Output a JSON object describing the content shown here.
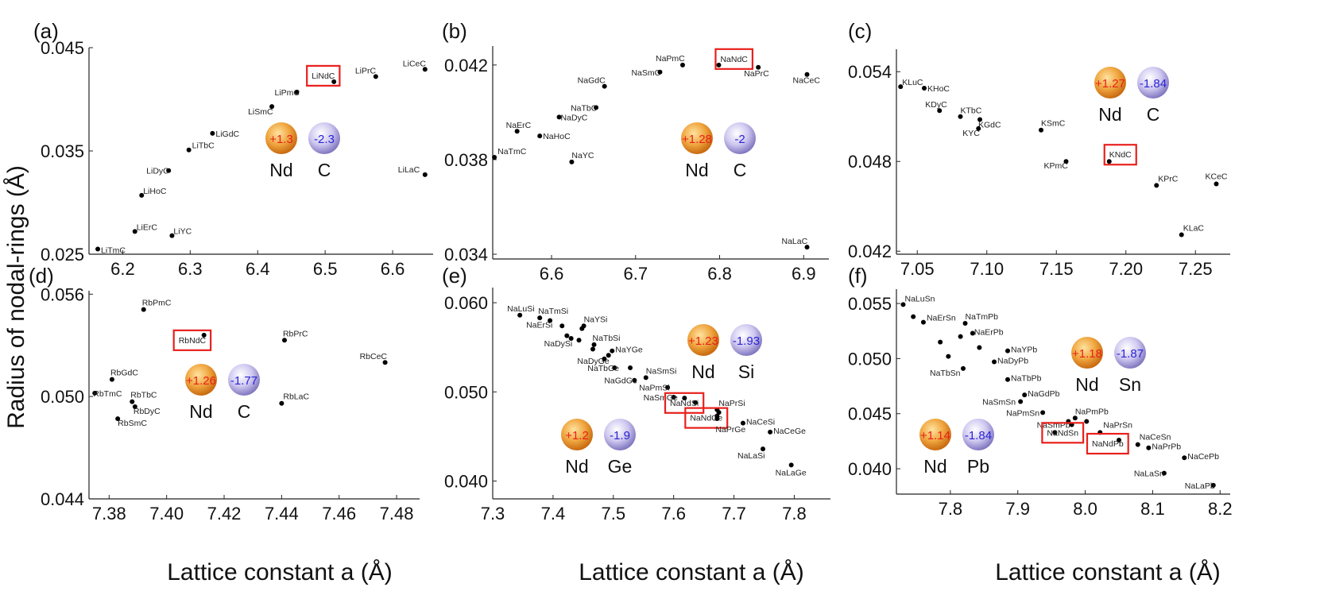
{
  "figure": {
    "ylabel": "Radius of nodal-rings (Å)",
    "xlabel": "Lattice constant a (Å)"
  },
  "colors": {
    "point": "#000000",
    "highlight": "#e8201c",
    "positive_charge": "#e8201c",
    "negative_charge": "#2a23d6",
    "nd_sphere_inner": "#ffd37a",
    "nd_sphere_outer": "#d87a10",
    "anion_sphere_inner": "#f1eefc",
    "anion_sphere_outer": "#8a82c8"
  },
  "chart_data": [
    {
      "type": "scatter",
      "panel": "(a)",
      "xlim": [
        6.15,
        6.66
      ],
      "ylim": [
        0.025,
        0.045
      ],
      "xticks": [
        6.2,
        6.3,
        6.4,
        6.5,
        6.6
      ],
      "yticks": [
        0.025,
        0.035,
        0.045
      ],
      "xtick_labels": [
        "6.2",
        "6.3",
        "6.4",
        "6.5",
        "6.6"
      ],
      "ytick_labels": [
        "0.025",
        "0.035",
        "0.045"
      ],
      "points": [
        {
          "label": "LiCeC",
          "x": 6.648,
          "y": 0.0429,
          "dx": -28,
          "dy": -4
        },
        {
          "label": "LiPrC",
          "x": 6.575,
          "y": 0.0422,
          "dx": -26,
          "dy": -4
        },
        {
          "label": "LiNdC",
          "x": 6.513,
          "y": 0.0417,
          "dx": -28,
          "dy": -4,
          "highlight": true
        },
        {
          "label": "LiPmC",
          "x": 6.458,
          "y": 0.0407,
          "dx": -28,
          "dy": 4
        },
        {
          "label": "LiSmC",
          "x": 6.421,
          "y": 0.0393,
          "dx": -30,
          "dy": 10
        },
        {
          "label": "LiGdC",
          "x": 6.333,
          "y": 0.0367,
          "dx": 4,
          "dy": 4
        },
        {
          "label": "LiTbC",
          "x": 6.298,
          "y": 0.0351,
          "dx": 4,
          "dy": -2
        },
        {
          "label": "LiDyC",
          "x": 6.268,
          "y": 0.0331,
          "dx": -28,
          "dy": 4
        },
        {
          "label": "LiHoC",
          "x": 6.228,
          "y": 0.0307,
          "dx": 2,
          "dy": -2
        },
        {
          "label": "LiErC",
          "x": 6.218,
          "y": 0.0272,
          "dx": 2,
          "dy": -2
        },
        {
          "label": "LiYC",
          "x": 6.273,
          "y": 0.0268,
          "dx": 2,
          "dy": -2
        },
        {
          "label": "LiTmC",
          "x": 6.163,
          "y": 0.0255,
          "dx": 4,
          "dy": 5
        },
        {
          "label": "LiLaC",
          "x": 6.648,
          "y": 0.0327,
          "dx": -34,
          "dy": -3
        }
      ],
      "badge": {
        "pos_charge": "+1.3",
        "neg_charge": "-2.3",
        "cation": "Nd",
        "anion": "C"
      }
    },
    {
      "type": "scatter",
      "panel": "(b)",
      "xlim": [
        6.53,
        6.93
      ],
      "ylim": [
        0.0338,
        0.0428
      ],
      "xticks": [
        6.6,
        6.7,
        6.8,
        6.9
      ],
      "yticks": [
        0.034,
        0.038,
        0.042
      ],
      "xtick_labels": [
        "6.6",
        "6.7",
        "6.8",
        "6.9"
      ],
      "ytick_labels": [
        "0.034",
        "0.038",
        "0.042"
      ],
      "points": [
        {
          "label": "NaNdC",
          "x": 6.799,
          "y": 0.042,
          "dx": 2,
          "dy": -4,
          "highlight": true
        },
        {
          "label": "NaPmC",
          "x": 6.756,
          "y": 0.042,
          "dx": -34,
          "dy": -5
        },
        {
          "label": "NaSmC",
          "x": 6.729,
          "y": 0.0417,
          "dx": -36,
          "dy": 4
        },
        {
          "label": "NaPrC",
          "x": 6.846,
          "y": 0.0419,
          "dx": -18,
          "dy": 11
        },
        {
          "label": "NaCeC",
          "x": 6.904,
          "y": 0.0416,
          "dx": -18,
          "dy": 11
        },
        {
          "label": "NaGdC",
          "x": 6.663,
          "y": 0.0411,
          "dx": -34,
          "dy": -4
        },
        {
          "label": "NaTbC",
          "x": 6.653,
          "y": 0.0402,
          "dx": -32,
          "dy": 4
        },
        {
          "label": "NaDyC",
          "x": 6.609,
          "y": 0.0398,
          "dx": 2,
          "dy": 4
        },
        {
          "label": "NaErC",
          "x": 6.559,
          "y": 0.0392,
          "dx": -14,
          "dy": -4
        },
        {
          "label": "NaHoC",
          "x": 6.586,
          "y": 0.039,
          "dx": 4,
          "dy": 4
        },
        {
          "label": "NaTmC",
          "x": 6.532,
          "y": 0.0381,
          "dx": 4,
          "dy": -4
        },
        {
          "label": "NaYC",
          "x": 6.624,
          "y": 0.0379,
          "dx": 0,
          "dy": -5
        },
        {
          "label": "NaLaC",
          "x": 6.904,
          "y": 0.0343,
          "dx": -32,
          "dy": -4
        }
      ],
      "badge": {
        "pos_charge": "+1.28",
        "neg_charge": "-2",
        "cation": "Nd",
        "anion": "C"
      }
    },
    {
      "type": "scatter",
      "panel": "(c)",
      "xlim": [
        7.035,
        7.275
      ],
      "ylim": [
        0.0418,
        0.0555
      ],
      "xticks": [
        7.05,
        7.1,
        7.15,
        7.2,
        7.25
      ],
      "yticks": [
        0.042,
        0.048,
        0.054
      ],
      "xtick_labels": [
        "7.05",
        "7.10",
        "7.15",
        "7.20",
        "7.25"
      ],
      "ytick_labels": [
        "0.042",
        "0.048",
        "0.054"
      ],
      "points": [
        {
          "label": "KLuC",
          "x": 7.038,
          "y": 0.053,
          "dx": 2,
          "dy": -2
        },
        {
          "label": "KHoC",
          "x": 7.055,
          "y": 0.0529,
          "dx": 4,
          "dy": 4
        },
        {
          "label": "KDyC",
          "x": 7.066,
          "y": 0.0514,
          "dx": -18,
          "dy": -4
        },
        {
          "label": "KTbC",
          "x": 7.081,
          "y": 0.051,
          "dx": 0,
          "dy": -4
        },
        {
          "label": "KGdC",
          "x": 7.095,
          "y": 0.0508,
          "dx": -2,
          "dy": 10
        },
        {
          "label": "KYC",
          "x": 7.094,
          "y": 0.0502,
          "dx": -20,
          "dy": 9
        },
        {
          "label": "KSmC",
          "x": 7.139,
          "y": 0.0501,
          "dx": 0,
          "dy": -5
        },
        {
          "label": "KPmC",
          "x": 7.157,
          "y": 0.048,
          "dx": -28,
          "dy": 9
        },
        {
          "label": "KNdC",
          "x": 7.188,
          "y": 0.048,
          "dx": 0,
          "dy": -5,
          "highlight": true
        },
        {
          "label": "KPrC",
          "x": 7.222,
          "y": 0.0464,
          "dx": 2,
          "dy": -5
        },
        {
          "label": "KCeC",
          "x": 7.265,
          "y": 0.0465,
          "dx": -14,
          "dy": -6
        },
        {
          "label": "KLaC",
          "x": 7.24,
          "y": 0.0431,
          "dx": 2,
          "dy": -5
        }
      ],
      "badge": {
        "pos_charge": "+1.27",
        "neg_charge": "-1.84",
        "cation": "Nd",
        "anion": "C"
      }
    },
    {
      "type": "scatter",
      "panel": "(d)",
      "xlim": [
        7.373,
        7.488
      ],
      "ylim": [
        0.044,
        0.0562
      ],
      "xticks": [
        7.38,
        7.4,
        7.42,
        7.44,
        7.46,
        7.48
      ],
      "yticks": [
        0.044,
        0.05,
        0.056
      ],
      "xtick_labels": [
        "7.38",
        "7.40",
        "7.42",
        "7.44",
        "7.46",
        "7.48"
      ],
      "ytick_labels": [
        "0.044",
        "0.050",
        "0.056"
      ],
      "points": [
        {
          "label": "RbPmC",
          "x": 7.392,
          "y": 0.0551,
          "dx": -2,
          "dy": -5
        },
        {
          "label": "RbNdC",
          "x": 7.413,
          "y": 0.0536,
          "dx": -32,
          "dy": 10,
          "highlight": true
        },
        {
          "label": "RbPrC",
          "x": 7.441,
          "y": 0.0533,
          "dx": -2,
          "dy": -5
        },
        {
          "label": "RbCeC",
          "x": 7.476,
          "y": 0.052,
          "dx": -32,
          "dy": -4
        },
        {
          "label": "RbGdC",
          "x": 7.381,
          "y": 0.051,
          "dx": -2,
          "dy": -5
        },
        {
          "label": "RbTmC",
          "x": 7.375,
          "y": 0.0502,
          "dx": -2,
          "dy": 4
        },
        {
          "label": "RbTbC",
          "x": 7.388,
          "y": 0.0497,
          "dx": -2,
          "dy": -5
        },
        {
          "label": "RbDyC",
          "x": 7.389,
          "y": 0.0494,
          "dx": -2,
          "dy": 9
        },
        {
          "label": "RbSmC",
          "x": 7.383,
          "y": 0.0487,
          "dx": 0,
          "dy": 9
        },
        {
          "label": "RbLaC",
          "x": 7.44,
          "y": 0.0496,
          "dx": 2,
          "dy": -5
        }
      ],
      "badge": {
        "pos_charge": "+1.26",
        "neg_charge": "-1.77",
        "cation": "Nd",
        "anion": "C"
      }
    },
    {
      "type": "scatter",
      "panel": "(e)",
      "xlim": [
        7.3,
        7.86
      ],
      "ylim": [
        0.038,
        0.0617
      ],
      "xticks": [
        7.3,
        7.4,
        7.5,
        7.6,
        7.7,
        7.8
      ],
      "yticks": [
        0.04,
        0.05,
        0.06
      ],
      "xtick_labels": [
        "7.3",
        "7.4",
        "7.5",
        "7.6",
        "7.7",
        "7.8"
      ],
      "ytick_labels": [
        "0.040",
        "0.050",
        "0.060"
      ],
      "points": [
        {
          "label": "NaLuSi",
          "x": 7.345,
          "y": 0.0586,
          "dx": -16,
          "dy": -5
        },
        {
          "label": "NaTmSi",
          "x": 7.378,
          "y": 0.0583,
          "dx": -2,
          "dy": -5
        },
        {
          "label": "NaErSi",
          "x": 7.395,
          "y": 0.058,
          "dx": -30,
          "dy": 9
        },
        {
          "label": "NaYSi",
          "x": 7.451,
          "y": 0.0574,
          "dx": 0,
          "dy": -5
        },
        {
          "label": "NaDySi",
          "x": 7.43,
          "y": 0.056,
          "dx": -34,
          "dy": 10
        },
        {
          "label": "NaTbSi",
          "x": 7.468,
          "y": 0.0553,
          "dx": -2,
          "dy": -5
        },
        {
          "label": "NaYGe",
          "x": 7.498,
          "y": 0.0546,
          "dx": 4,
          "dy": 2
        },
        {
          "label": "NaDyGe",
          "x": 7.485,
          "y": 0.0537,
          "dx": -34,
          "dy": 6
        },
        {
          "label": "NaTbGe",
          "x": 7.502,
          "y": 0.0527,
          "dx": -34,
          "dy": 4
        },
        {
          "label": "NaSmSi",
          "x": 7.554,
          "y": 0.0516,
          "dx": 0,
          "dy": -5
        },
        {
          "label": "NaGdGe",
          "x": 7.535,
          "y": 0.0513,
          "dx": -38,
          "dy": 4
        },
        {
          "label": "NaPmSi",
          "x": 7.59,
          "y": 0.0505,
          "dx": -36,
          "dy": 4
        },
        {
          "label": "NaSmGe",
          "x": 7.6,
          "y": 0.0494,
          "dx": -38,
          "dy": 4
        },
        {
          "label": "NaNdSi",
          "x": 7.636,
          "y": 0.0488,
          "dx": -32,
          "dy": 4,
          "highlight": true
        },
        {
          "label": "NaPrSi",
          "x": 7.672,
          "y": 0.048,
          "dx": 2,
          "dy": -5
        },
        {
          "label": "NaNdGe",
          "x": 7.672,
          "y": 0.0473,
          "dx": -34,
          "dy": 6,
          "highlight": true
        },
        {
          "label": "NaPrGe",
          "x": 7.672,
          "y": 0.047,
          "dx": -2,
          "dy": 17
        },
        {
          "label": "NaCeSi",
          "x": 7.715,
          "y": 0.0465,
          "dx": 4,
          "dy": 2
        },
        {
          "label": "NaCeGe",
          "x": 7.76,
          "y": 0.0455,
          "dx": 4,
          "dy": 2
        },
        {
          "label": "NaLaSi",
          "x": 7.748,
          "y": 0.0436,
          "dx": -32,
          "dy": 12
        },
        {
          "label": "NaLaGe",
          "x": 7.795,
          "y": 0.0418,
          "dx": -20,
          "dy": 13
        }
      ],
      "extra_points": [
        {
          "x": 7.415,
          "y": 0.0574
        },
        {
          "x": 7.423,
          "y": 0.0563
        },
        {
          "x": 7.443,
          "y": 0.0558
        },
        {
          "x": 7.448,
          "y": 0.0571
        },
        {
          "x": 7.466,
          "y": 0.0548
        },
        {
          "x": 7.492,
          "y": 0.0541
        },
        {
          "x": 7.528,
          "y": 0.0527
        },
        {
          "x": 7.618,
          "y": 0.0493
        },
        {
          "x": 7.675,
          "y": 0.0477
        }
      ],
      "badges": [
        {
          "pos_charge": "+1.23",
          "neg_charge": "-1.93",
          "cation": "Nd",
          "anion": "Si"
        },
        {
          "pos_charge": "+1.2",
          "neg_charge": "-1.9",
          "cation": "Nd",
          "anion": "Ge"
        }
      ]
    },
    {
      "type": "scatter",
      "panel": "(f)",
      "xlim": [
        7.72,
        8.215
      ],
      "ylim": [
        0.0377,
        0.0563
      ],
      "xticks": [
        7.8,
        7.9,
        8.0,
        8.1,
        8.2
      ],
      "yticks": [
        0.04,
        0.045,
        0.05,
        0.055
      ],
      "xtick_labels": [
        "7.8",
        "7.9",
        "8.0",
        "8.1",
        "8.2"
      ],
      "ytick_labels": [
        "0.040",
        "0.045",
        "0.050",
        "0.055"
      ],
      "points": [
        {
          "label": "NaLuSn",
          "x": 7.73,
          "y": 0.0549,
          "dx": 2,
          "dy": -4
        },
        {
          "label": "NaErSn",
          "x": 7.76,
          "y": 0.0533,
          "dx": 4,
          "dy": -2
        },
        {
          "label": "NaTmPb",
          "x": 7.822,
          "y": 0.0532,
          "dx": 0,
          "dy": -5
        },
        {
          "label": "NaErPb",
          "x": 7.833,
          "y": 0.0523,
          "dx": 2,
          "dy": 2
        },
        {
          "label": "NaYPb",
          "x": 7.885,
          "y": 0.0507,
          "dx": 4,
          "dy": 2
        },
        {
          "label": "NaDyPb",
          "x": 7.865,
          "y": 0.0497,
          "dx": 4,
          "dy": 2
        },
        {
          "label": "NaTbSn",
          "x": 7.819,
          "y": 0.0491,
          "dx": -42,
          "dy": 9
        },
        {
          "label": "NaTbPb",
          "x": 7.885,
          "y": 0.0481,
          "dx": 4,
          "dy": 2
        },
        {
          "label": "NaGdPb",
          "x": 7.91,
          "y": 0.0467,
          "dx": 4,
          "dy": 2
        },
        {
          "label": "NaSmSn",
          "x": 7.904,
          "y": 0.0461,
          "dx": -48,
          "dy": 4
        },
        {
          "label": "NaPmSn",
          "x": 7.937,
          "y": 0.0451,
          "dx": -46,
          "dy": 4
        },
        {
          "label": "NaPmPb",
          "x": 7.985,
          "y": 0.0446,
          "dx": 0,
          "dy": -5
        },
        {
          "label": "NaSmPb",
          "x": 7.98,
          "y": 0.044,
          "dx": -44,
          "dy": 4
        },
        {
          "label": "NaPrSn",
          "x": 8.022,
          "y": 0.0433,
          "dx": 4,
          "dy": -6
        },
        {
          "label": "NaNdSn",
          "x": 7.955,
          "y": 0.0433,
          "dx": -10,
          "dy": 4,
          "highlight": true
        },
        {
          "label": "NaNdPb",
          "x": 8.05,
          "y": 0.0426,
          "dx": -34,
          "dy": 8,
          "highlight": true
        },
        {
          "label": "NaCePb",
          "x": 8.147,
          "y": 0.041,
          "dx": 4,
          "dy": 2
        },
        {
          "label": "NaCeSn",
          "x": 8.078,
          "y": 0.0422,
          "dx": 2,
          "dy": -6
        },
        {
          "label": "NaPrPb",
          "x": 8.094,
          "y": 0.0419,
          "dx": 4,
          "dy": 2
        },
        {
          "label": "NaLaSn",
          "x": 8.117,
          "y": 0.0396,
          "dx": -38,
          "dy": 4
        },
        {
          "label": "NaLaPb",
          "x": 8.19,
          "y": 0.0385,
          "dx": -36,
          "dy": 4
        }
      ],
      "extra_points": [
        {
          "x": 7.745,
          "y": 0.0538
        },
        {
          "x": 7.785,
          "y": 0.0515
        },
        {
          "x": 7.797,
          "y": 0.0502
        },
        {
          "x": 7.815,
          "y": 0.052
        },
        {
          "x": 7.843,
          "y": 0.051
        },
        {
          "x": 7.975,
          "y": 0.0443
        },
        {
          "x": 8.002,
          "y": 0.0443
        }
      ],
      "badges": [
        {
          "pos_charge": "+1.18",
          "neg_charge": "-1.87",
          "cation": "Nd",
          "anion": "Sn"
        },
        {
          "pos_charge": "+1.14",
          "neg_charge": "-1.84",
          "cation": "Nd",
          "anion": "Pb"
        }
      ]
    }
  ]
}
